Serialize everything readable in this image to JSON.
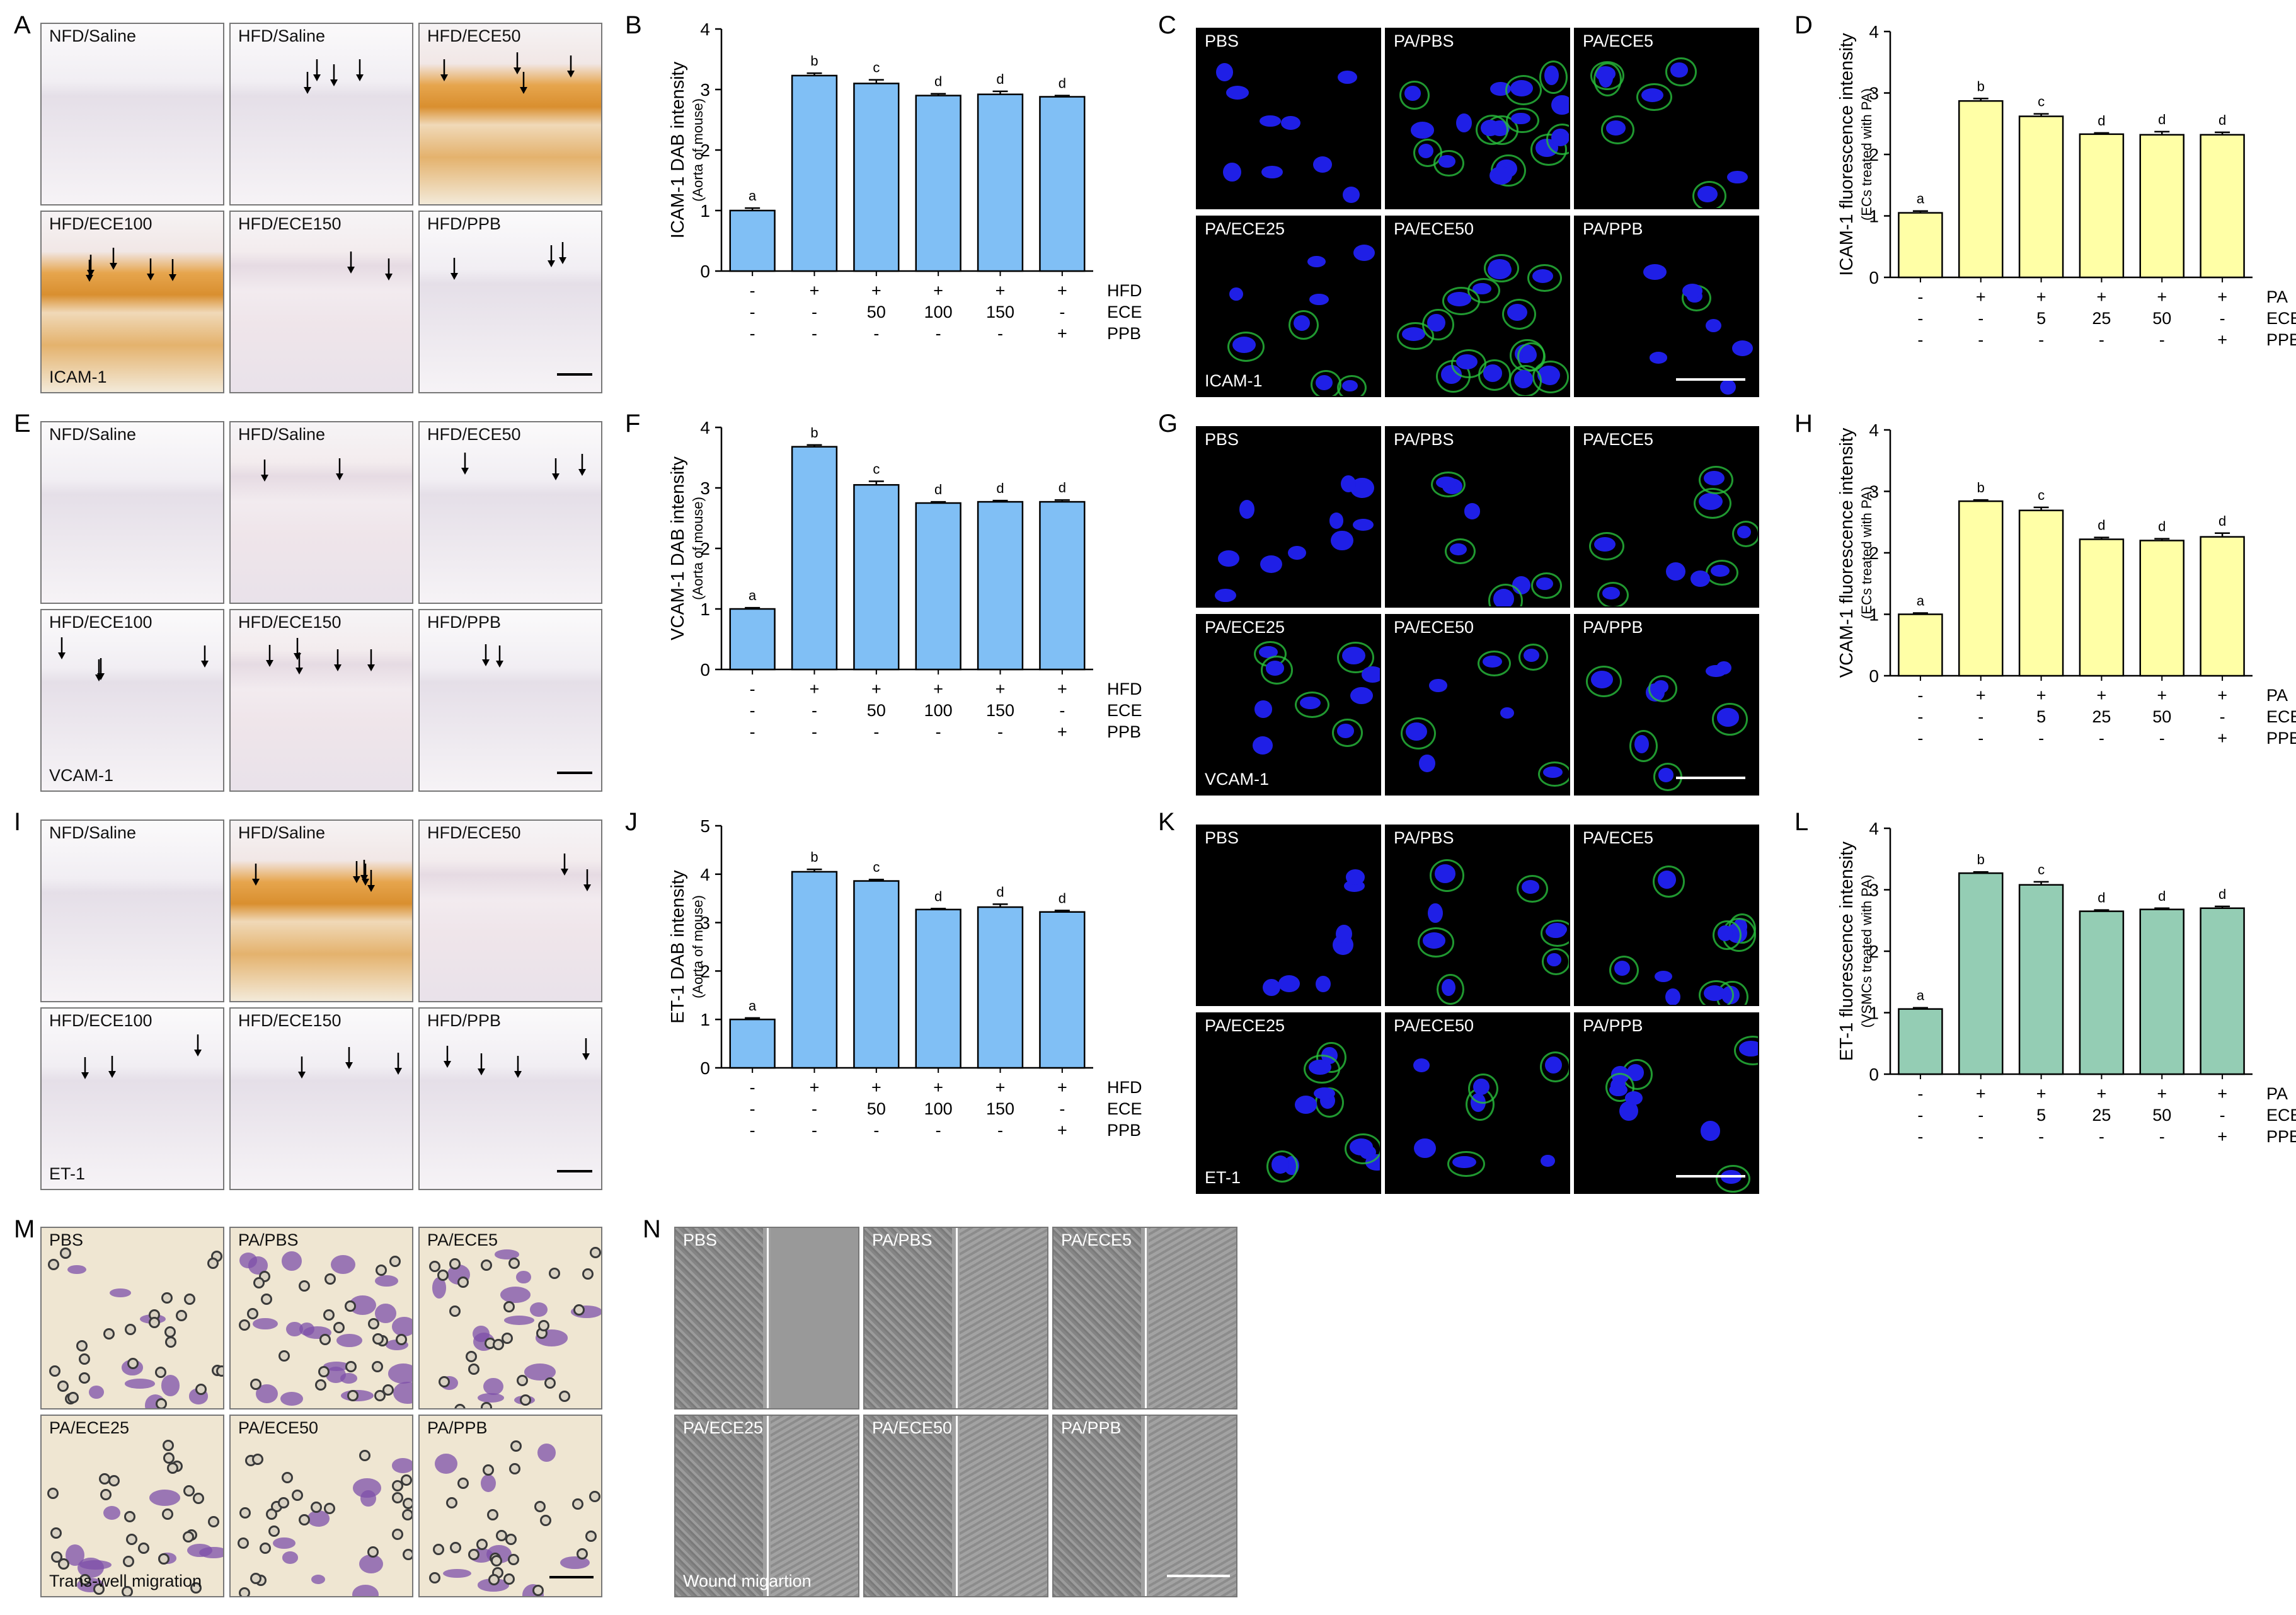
{
  "panel_letters": [
    "A",
    "B",
    "C",
    "D",
    "E",
    "F",
    "G",
    "H",
    "I",
    "J",
    "K",
    "L",
    "M",
    "N"
  ],
  "ihc_sets": [
    {
      "stain": "ICAM-1",
      "labels": [
        "NFD/Saline",
        "HFD/Saline",
        "HFD/ECE50",
        "HFD/ECE100",
        "HFD/ECE150",
        "HFD/PPB"
      ]
    },
    {
      "stain": "VCAM-1",
      "labels": [
        "NFD/Saline",
        "HFD/Saline",
        "HFD/ECE50",
        "HFD/ECE100",
        "HFD/ECE150",
        "HFD/PPB"
      ]
    },
    {
      "stain": "ET-1",
      "labels": [
        "NFD/Saline",
        "HFD/Saline",
        "HFD/ECE50",
        "HFD/ECE100",
        "HFD/ECE150",
        "HFD/PPB"
      ]
    }
  ],
  "fluo_sets": [
    {
      "stain": "ICAM-1",
      "labels": [
        "PBS",
        "PA/PBS",
        "PA/ECE5",
        "PA/ECE25",
        "PA/ECE50",
        "PA/PPB"
      ]
    },
    {
      "stain": "VCAM-1",
      "labels": [
        "PBS",
        "PA/PBS",
        "PA/ECE5",
        "PA/ECE25",
        "PA/ECE50",
        "PA/PPB"
      ]
    },
    {
      "stain": "ET-1",
      "labels": [
        "PBS",
        "PA/PBS",
        "PA/ECE5",
        "PA/ECE25",
        "PA/ECE50",
        "PA/PPB"
      ]
    }
  ],
  "transwell": {
    "stain": "Trans-well migration",
    "labels": [
      "PBS",
      "PA/PBS",
      "PA/ECE5",
      "PA/ECE25",
      "PA/ECE50",
      "PA/PPB"
    ]
  },
  "wound": {
    "stain": "Wound migartion",
    "labels": [
      "PBS",
      "PA/PBS",
      "PA/ECE5",
      "PA/ECE25",
      "PA/ECE50",
      "PA/PPB"
    ]
  },
  "colors": {
    "blue_bar": "#80bff5",
    "yellow_bar": "#ffffa6",
    "green_bar": "#94cdb4"
  },
  "chart_data": [
    {
      "id": "B",
      "type": "bar",
      "ylabel": "ICAM-1 DAB intensity",
      "ylabel_sub": "(Aorta of mouse)",
      "ylim": [
        0,
        4
      ],
      "yticks": [
        0,
        1,
        2,
        3,
        4
      ],
      "values": [
        1.0,
        3.23,
        3.1,
        2.9,
        2.92,
        2.88
      ],
      "errors": [
        0.04,
        0.04,
        0.06,
        0.03,
        0.05,
        0.02
      ],
      "letters": [
        "a",
        "b",
        "c",
        "d",
        "d",
        "d"
      ],
      "color": "#80bff5",
      "rows": [
        {
          "name": "HFD",
          "cells": [
            "-",
            "+",
            "+",
            "+",
            "+",
            "+"
          ]
        },
        {
          "name": "ECE",
          "cells": [
            "-",
            "-",
            "50",
            "100",
            "150",
            "-"
          ]
        },
        {
          "name": "PPB",
          "cells": [
            "-",
            "-",
            "-",
            "-",
            "-",
            "+"
          ]
        }
      ]
    },
    {
      "id": "D",
      "type": "bar",
      "ylabel": "ICAM-1 fluorescence intensity",
      "ylabel_sub": "(ECs treated with PA)",
      "ylim": [
        0,
        4
      ],
      "yticks": [
        0,
        1,
        2,
        3,
        4
      ],
      "values": [
        1.05,
        2.87,
        2.62,
        2.33,
        2.32,
        2.32
      ],
      "errors": [
        0.03,
        0.04,
        0.04,
        0.02,
        0.05,
        0.04
      ],
      "letters": [
        "a",
        "b",
        "c",
        "d",
        "d",
        "d"
      ],
      "color": "#ffffa6",
      "rows": [
        {
          "name": "PA",
          "cells": [
            "-",
            "+",
            "+",
            "+",
            "+",
            "+"
          ]
        },
        {
          "name": "ECE",
          "cells": [
            "-",
            "-",
            "5",
            "25",
            "50",
            "-"
          ]
        },
        {
          "name": "PPB",
          "cells": [
            "-",
            "-",
            "-",
            "-",
            "-",
            "+"
          ]
        }
      ]
    },
    {
      "id": "F",
      "type": "bar",
      "ylabel": "VCAM-1 DAB intensity",
      "ylabel_sub": "(Aorta of mouse)",
      "ylim": [
        0,
        4
      ],
      "yticks": [
        0,
        1,
        2,
        3,
        4
      ],
      "values": [
        1.0,
        3.68,
        3.05,
        2.75,
        2.77,
        2.77
      ],
      "errors": [
        0.02,
        0.03,
        0.06,
        0.02,
        0.02,
        0.03
      ],
      "letters": [
        "a",
        "b",
        "c",
        "d",
        "d",
        "d"
      ],
      "color": "#80bff5",
      "rows": [
        {
          "name": "HFD",
          "cells": [
            "-",
            "+",
            "+",
            "+",
            "+",
            "+"
          ]
        },
        {
          "name": "ECE",
          "cells": [
            "-",
            "-",
            "50",
            "100",
            "150",
            "-"
          ]
        },
        {
          "name": "PPB",
          "cells": [
            "-",
            "-",
            "-",
            "-",
            "-",
            "+"
          ]
        }
      ]
    },
    {
      "id": "H",
      "type": "bar",
      "ylabel": "VCAM-1 fluorescence intensity",
      "ylabel_sub": "(ECs treated with PA)",
      "ylim": [
        0,
        4
      ],
      "yticks": [
        0,
        1,
        2,
        3,
        4
      ],
      "values": [
        1.0,
        2.84,
        2.69,
        2.22,
        2.2,
        2.26
      ],
      "errors": [
        0.02,
        0.02,
        0.05,
        0.03,
        0.03,
        0.06
      ],
      "letters": [
        "a",
        "b",
        "c",
        "d",
        "d",
        "d"
      ],
      "color": "#ffffa6",
      "rows": [
        {
          "name": "PA",
          "cells": [
            "-",
            "+",
            "+",
            "+",
            "+",
            "+"
          ]
        },
        {
          "name": "ECE",
          "cells": [
            "-",
            "-",
            "5",
            "25",
            "50",
            "-"
          ]
        },
        {
          "name": "PPB",
          "cells": [
            "-",
            "-",
            "-",
            "-",
            "-",
            "+"
          ]
        }
      ]
    },
    {
      "id": "J",
      "type": "bar",
      "ylabel": "ET-1 DAB intensity",
      "ylabel_sub": "(Aorta of mouse)",
      "ylim": [
        0,
        5
      ],
      "yticks": [
        0,
        1,
        2,
        3,
        4,
        5
      ],
      "values": [
        1.0,
        4.05,
        3.86,
        3.27,
        3.32,
        3.22
      ],
      "errors": [
        0.03,
        0.05,
        0.03,
        0.02,
        0.06,
        0.03
      ],
      "letters": [
        "a",
        "b",
        "c",
        "d",
        "d",
        "d"
      ],
      "color": "#80bff5",
      "rows": [
        {
          "name": "HFD",
          "cells": [
            "-",
            "+",
            "+",
            "+",
            "+",
            "+"
          ]
        },
        {
          "name": "ECE",
          "cells": [
            "-",
            "-",
            "50",
            "100",
            "150",
            "-"
          ]
        },
        {
          "name": "PPB",
          "cells": [
            "-",
            "-",
            "-",
            "-",
            "-",
            "+"
          ]
        }
      ]
    },
    {
      "id": "L",
      "type": "bar",
      "ylabel": "ET-1 fluorescence intensity",
      "ylabel_sub": "(VSMCs treated with PA)",
      "ylim": [
        0,
        4
      ],
      "yticks": [
        0,
        1,
        2,
        3,
        4
      ],
      "values": [
        1.06,
        3.27,
        3.08,
        2.65,
        2.68,
        2.7
      ],
      "errors": [
        0.02,
        0.02,
        0.05,
        0.02,
        0.02,
        0.03
      ],
      "letters": [
        "a",
        "b",
        "c",
        "d",
        "d",
        "d"
      ],
      "color": "#94cdb4",
      "rows": [
        {
          "name": "PA",
          "cells": [
            "-",
            "+",
            "+",
            "+",
            "+",
            "+"
          ]
        },
        {
          "name": "ECE",
          "cells": [
            "-",
            "-",
            "5",
            "25",
            "50",
            "-"
          ]
        },
        {
          "name": "PPB",
          "cells": [
            "-",
            "-",
            "-",
            "-",
            "-",
            "+"
          ]
        }
      ]
    }
  ]
}
